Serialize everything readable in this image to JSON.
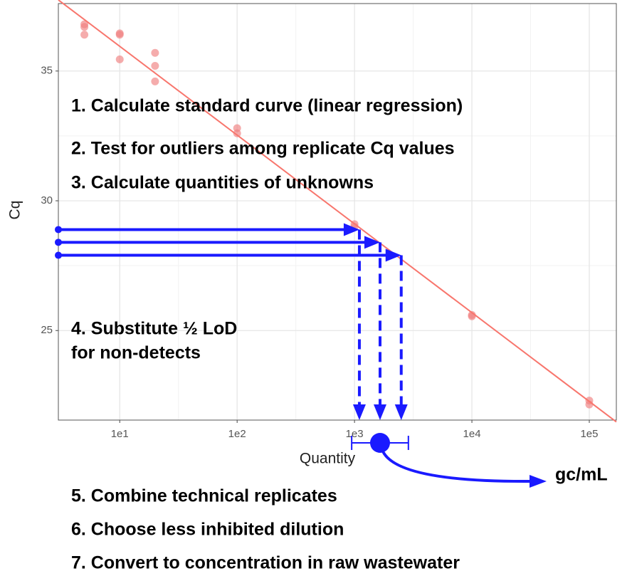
{
  "chart_data": {
    "type": "scatter",
    "x_axis_label": "Quantity",
    "y_axis_label": "Cq",
    "xscale": "log",
    "xlim": [
      3,
      170000
    ],
    "ylim": [
      21.55,
      37.6
    ],
    "xticks": [
      {
        "value": 10,
        "label": "1e1"
      },
      {
        "value": 100,
        "label": "1e2"
      },
      {
        "value": 1000,
        "label": "1e3"
      },
      {
        "value": 10000,
        "label": "1e4"
      },
      {
        "value": 100000,
        "label": "1e5"
      }
    ],
    "yticks": [
      25,
      30,
      35
    ],
    "grid": true,
    "color": "#f08080",
    "x": [
      5,
      5,
      5,
      10,
      10,
      10,
      20,
      20,
      20,
      100,
      100,
      1000,
      1000,
      10000,
      10000,
      100000,
      100000
    ],
    "values": [
      36.8,
      36.7,
      36.4,
      36.45,
      36.4,
      35.45,
      35.7,
      35.2,
      34.6,
      32.8,
      32.6,
      29.1,
      29.0,
      25.6,
      25.55,
      22.3,
      22.15
    ],
    "regression_line": {
      "color": "#f8766d",
      "x": [
        3,
        170000
      ],
      "values": [
        37.74,
        21.48
      ]
    },
    "unknowns": {
      "color": "#1a1aff",
      "values": [
        28.89,
        28.4,
        27.9
      ],
      "quantities": [
        1100,
        1650,
        2500
      ]
    },
    "combined": {
      "value": 1650,
      "range": [
        946,
        2877
      ]
    },
    "unit_label": "gc/mL",
    "steps": [
      "1. Calculate standard curve (linear regression)",
      "2. Test for outliers among replicate Cq values",
      "3. Calculate quantities of unknowns",
      "4. Substitute ½ LoD",
      "for non-detects",
      "5. Combine technical replicates",
      "6. Choose less inhibited dilution",
      "7. Convert to concentration in raw wastewater"
    ]
  }
}
